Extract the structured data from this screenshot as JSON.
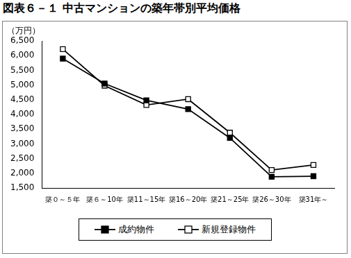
{
  "chart_data": {
    "type": "line",
    "title": "図表６－１ 中古マンションの築年帯別平均価格",
    "y_label": "（万円）",
    "categories": [
      "築０～５年",
      "築６～10年",
      "築11～15年",
      "築16～20年",
      "築21～25年",
      "築26～30年",
      "築31年～"
    ],
    "series": [
      {
        "name": "成約物件",
        "color": "#000000",
        "marker": "square",
        "line_style": "solid",
        "values": [
          5900,
          5050,
          4480,
          4180,
          3200,
          1880,
          1900
        ]
      },
      {
        "name": "新規登録物件",
        "color": "#000000",
        "marker": "square-open",
        "line_style": "solid",
        "values": [
          6220,
          4980,
          4320,
          4520,
          3380,
          2110,
          2280
        ]
      }
    ],
    "ylim": [
      1500,
      6500
    ],
    "yticks": [
      {
        "value": 1500,
        "label": "1,500"
      },
      {
        "value": 2000,
        "label": "2,000"
      },
      {
        "value": 2500,
        "label": "2,500"
      },
      {
        "value": 3000,
        "label": "3,000"
      },
      {
        "value": 3500,
        "label": "3,500"
      },
      {
        "value": 4000,
        "label": "4,000"
      },
      {
        "value": 4500,
        "label": "4,500"
      },
      {
        "value": 5000,
        "label": "5,000"
      },
      {
        "value": 5500,
        "label": "5,500"
      },
      {
        "value": 6000,
        "label": "6,000"
      },
      {
        "value": 6500,
        "label": "6,500"
      }
    ],
    "grid": false,
    "legend": "bottom"
  }
}
